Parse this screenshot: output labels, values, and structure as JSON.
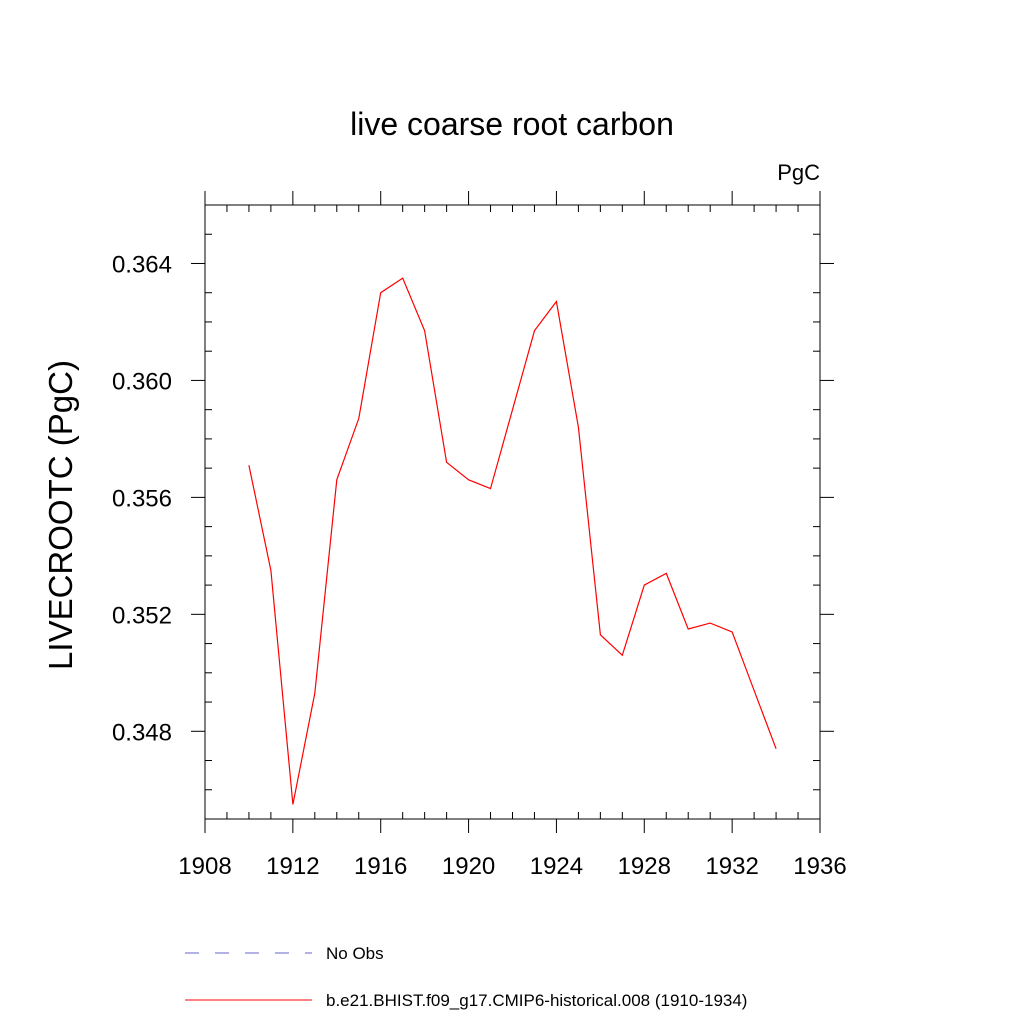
{
  "chart_data": {
    "type": "line",
    "title": "live coarse root carbon",
    "units": "PgC",
    "ylabel": "LIVECROOTC  (PgC)",
    "xlabel": "",
    "xlim": [
      1908,
      1936
    ],
    "ylim": [
      0.345,
      0.366
    ],
    "xticks": [
      "1908",
      "1912",
      "1916",
      "1920",
      "1924",
      "1928",
      "1932",
      "1936"
    ],
    "yticks": [
      "0.348",
      "0.352",
      "0.356",
      "0.360",
      "0.364"
    ],
    "grid": false,
    "legend_position": "bottom",
    "series": [
      {
        "name": "No Obs",
        "color": "#6666cc",
        "style": "dashed",
        "x": [],
        "y": []
      },
      {
        "name": "b.e21.BHIST.f09_g17.CMIP6-historical.008 (1910-1934)",
        "color": "#ff0000",
        "style": "solid",
        "x": [
          1910,
          1911,
          1912,
          1913,
          1914,
          1915,
          1916,
          1917,
          1918,
          1919,
          1920,
          1921,
          1922,
          1923,
          1924,
          1925,
          1926,
          1927,
          1928,
          1929,
          1930,
          1931,
          1932,
          1933,
          1934
        ],
        "y": [
          0.3571,
          0.3535,
          0.3455,
          0.3493,
          0.3566,
          0.3587,
          0.363,
          0.3635,
          0.3617,
          0.3572,
          0.3566,
          0.3563,
          0.359,
          0.3617,
          0.3627,
          0.3584,
          0.3513,
          0.3506,
          0.353,
          0.3534,
          0.3515,
          0.3517,
          0.3514,
          0.3494,
          0.3474
        ]
      }
    ]
  }
}
